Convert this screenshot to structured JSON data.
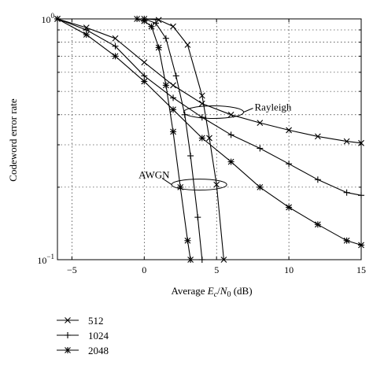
{
  "chart_data": {
    "type": "line",
    "ylabel": "Codeword error rate",
    "xlabel_parts": {
      "prefix": "Average ",
      "E": "E",
      "E_sub": "c",
      "slash": "/",
      "N": "N",
      "N_sub": "0",
      "suffix": " (dB)"
    },
    "y_scale": "log",
    "xlim": [
      -6,
      15
    ],
    "ylim": [
      0.1,
      1
    ],
    "x_ticks": [
      {
        "value": -5,
        "label": "−5"
      },
      {
        "value": 0,
        "label": "0"
      },
      {
        "value": 5,
        "label": "5"
      },
      {
        "value": 10,
        "label": "10"
      },
      {
        "value": 15,
        "label": "15"
      }
    ],
    "y_ticks": [
      {
        "value": 1,
        "base": "10",
        "exp": "0"
      },
      {
        "value": 0.1,
        "base": "10",
        "exp": "−1"
      }
    ],
    "grid": true,
    "legend_position": "below-left",
    "annotations": [
      {
        "label": "Rayleigh",
        "ellipse_center": [
          4.8,
          0.41
        ]
      },
      {
        "label": "AWGN",
        "ellipse_center": [
          3.8,
          0.205
        ]
      }
    ],
    "series": [
      {
        "name": "512",
        "marker": "x",
        "groups": [
          {
            "channel": "Rayleigh",
            "x": [
              -6,
              -4,
              -2,
              0,
              2,
              4,
              6,
              8,
              10,
              12,
              14,
              15
            ],
            "y": [
              1.0,
              0.92,
              0.83,
              0.66,
              0.53,
              0.445,
              0.4,
              0.37,
              0.345,
              0.325,
              0.31,
              0.305
            ]
          },
          {
            "channel": "AWGN",
            "x": [
              0,
              1,
              2,
              3,
              4,
              4.5,
              5,
              5.5
            ],
            "y": [
              1.0,
              0.99,
              0.93,
              0.78,
              0.48,
              0.32,
              0.205,
              0.1
            ]
          }
        ]
      },
      {
        "name": "1024",
        "marker": "+",
        "groups": [
          {
            "channel": "Rayleigh",
            "x": [
              -6,
              -4,
              -2,
              0,
              2,
              4,
              6,
              8,
              10,
              12,
              14,
              15
            ],
            "y": [
              1.0,
              0.9,
              0.77,
              0.58,
              0.47,
              0.39,
              0.33,
              0.29,
              0.25,
              0.215,
              0.19,
              0.185
            ]
          },
          {
            "channel": "AWGN",
            "x": [
              0,
              0.8,
              1.5,
              2.2,
              2.8,
              3.2,
              3.7,
              4
            ],
            "y": [
              1.0,
              0.96,
              0.83,
              0.58,
              0.4,
              0.27,
              0.15,
              0.1
            ]
          }
        ]
      },
      {
        "name": "2048",
        "marker": "*",
        "groups": [
          {
            "channel": "Rayleigh",
            "x": [
              -6,
              -4,
              -2,
              0,
              2,
              4,
              6,
              8,
              10,
              12,
              14,
              15
            ],
            "y": [
              1.0,
              0.86,
              0.7,
              0.55,
              0.42,
              0.32,
              0.255,
              0.2,
              0.165,
              0.14,
              0.12,
              0.115
            ]
          },
          {
            "channel": "AWGN",
            "x": [
              -0.5,
              0,
              0.5,
              1,
              1.5,
              2,
              2.5,
              3,
              3.2
            ],
            "y": [
              1.0,
              0.98,
              0.93,
              0.76,
              0.53,
              0.34,
              0.2,
              0.12,
              0.1
            ]
          }
        ]
      }
    ]
  }
}
